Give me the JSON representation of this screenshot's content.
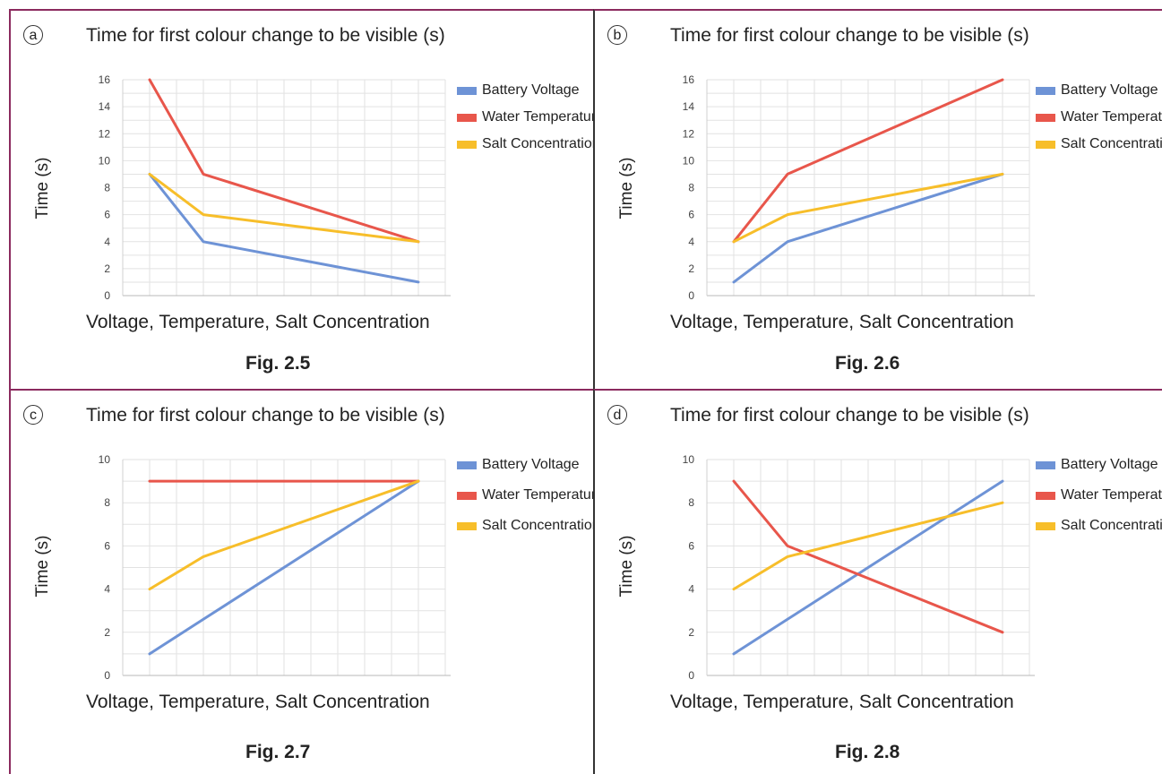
{
  "colors": {
    "battery": "#6e93d6",
    "water": "#e8564b",
    "salt": "#f7be2a"
  },
  "panels": [
    {
      "badge": "a",
      "title": "Time for first colour change to be visible (s)",
      "xlabel": "Voltage, Temperature, Salt Concentration",
      "ylabel": "Time (s)",
      "caption": "Fig. 2.5",
      "legend": [
        "Battery Voltage",
        "Water Temperature",
        "Salt Concentration"
      ]
    },
    {
      "badge": "b",
      "title": "Time for first colour change to be visible (s)",
      "xlabel": "Voltage, Temperature, Salt Concentration",
      "ylabel": "Time (s)",
      "caption": "Fig. 2.6",
      "legend": [
        "Battery Voltage",
        "Water Temperature",
        "Salt Concentration"
      ]
    },
    {
      "badge": "c",
      "title": "Time for first colour change to be visible (s)",
      "xlabel": "Voltage, Temperature, Salt Concentration",
      "ylabel": "Time (s)",
      "caption": "Fig. 2.7",
      "legend": [
        "Battery Voltage",
        "Water Temperature",
        "Salt Concentration"
      ]
    },
    {
      "badge": "d",
      "title": "Time for first colour change to be visible (s)",
      "xlabel": "Voltage, Temperature, Salt Concentration",
      "ylabel": "Time (s)",
      "caption": "Fig. 2.8",
      "legend": [
        "Battery Voltage",
        "Water Temperature",
        "Salt Concentration"
      ]
    }
  ],
  "chart_data": [
    {
      "type": "line",
      "title": "Time for first colour change to be visible (s)",
      "xlabel": "Voltage, Temperature, Salt Concentration",
      "ylabel": "Time (s)",
      "ylim": [
        0,
        16
      ],
      "yticks": [
        0,
        2,
        4,
        6,
        8,
        10,
        12,
        14,
        16
      ],
      "x": [
        1,
        2,
        6
      ],
      "grid": true,
      "legend_position": "right",
      "series": [
        {
          "name": "Battery Voltage",
          "color": "#6e93d6",
          "values": [
            9,
            4,
            1
          ]
        },
        {
          "name": "Water Temperature",
          "color": "#e8564b",
          "values": [
            16,
            9,
            4
          ]
        },
        {
          "name": "Salt Concentration",
          "color": "#f7be2a",
          "values": [
            9,
            6,
            4
          ]
        }
      ]
    },
    {
      "type": "line",
      "title": "Time for first colour change to be visible (s)",
      "xlabel": "Voltage, Temperature, Salt Concentration",
      "ylabel": "Time (s)",
      "ylim": [
        0,
        16
      ],
      "yticks": [
        0,
        2,
        4,
        6,
        8,
        10,
        12,
        14,
        16
      ],
      "x": [
        1,
        2,
        6
      ],
      "grid": true,
      "legend_position": "right",
      "series": [
        {
          "name": "Battery Voltage",
          "color": "#6e93d6",
          "values": [
            1,
            4,
            9
          ]
        },
        {
          "name": "Water Temperature",
          "color": "#e8564b",
          "values": [
            4,
            9,
            16
          ]
        },
        {
          "name": "Salt Concentration",
          "color": "#f7be2a",
          "values": [
            4,
            6,
            9
          ]
        }
      ]
    },
    {
      "type": "line",
      "title": "Time for first colour change to be visible (s)",
      "xlabel": "Voltage, Temperature, Salt Concentration",
      "ylabel": "Time (s)",
      "ylim": [
        0,
        10
      ],
      "yticks": [
        0,
        2,
        4,
        6,
        8,
        10
      ],
      "x": [
        1,
        2,
        6
      ],
      "grid": true,
      "legend_position": "right",
      "series": [
        {
          "name": "Battery Voltage",
          "color": "#6e93d6",
          "values": [
            1,
            2.6,
            9
          ]
        },
        {
          "name": "Water Temperature",
          "color": "#e8564b",
          "values": [
            9,
            9,
            9
          ]
        },
        {
          "name": "Salt Concentration",
          "color": "#f7be2a",
          "values": [
            4,
            5.5,
            9
          ]
        }
      ]
    },
    {
      "type": "line",
      "title": "Time for first colour change to be visible (s)",
      "xlabel": "Voltage, Temperature, Salt Concentration",
      "ylabel": "Time (s)",
      "ylim": [
        0,
        10
      ],
      "yticks": [
        0,
        2,
        4,
        6,
        8,
        10
      ],
      "x": [
        1,
        2,
        6
      ],
      "grid": true,
      "legend_position": "right",
      "series": [
        {
          "name": "Battery Voltage",
          "color": "#6e93d6",
          "values": [
            1,
            2.6,
            9
          ]
        },
        {
          "name": "Water Temperature",
          "color": "#e8564b",
          "values": [
            9,
            6,
            2
          ]
        },
        {
          "name": "Salt Concentration",
          "color": "#f7be2a",
          "values": [
            4,
            5.5,
            8
          ]
        }
      ]
    }
  ]
}
